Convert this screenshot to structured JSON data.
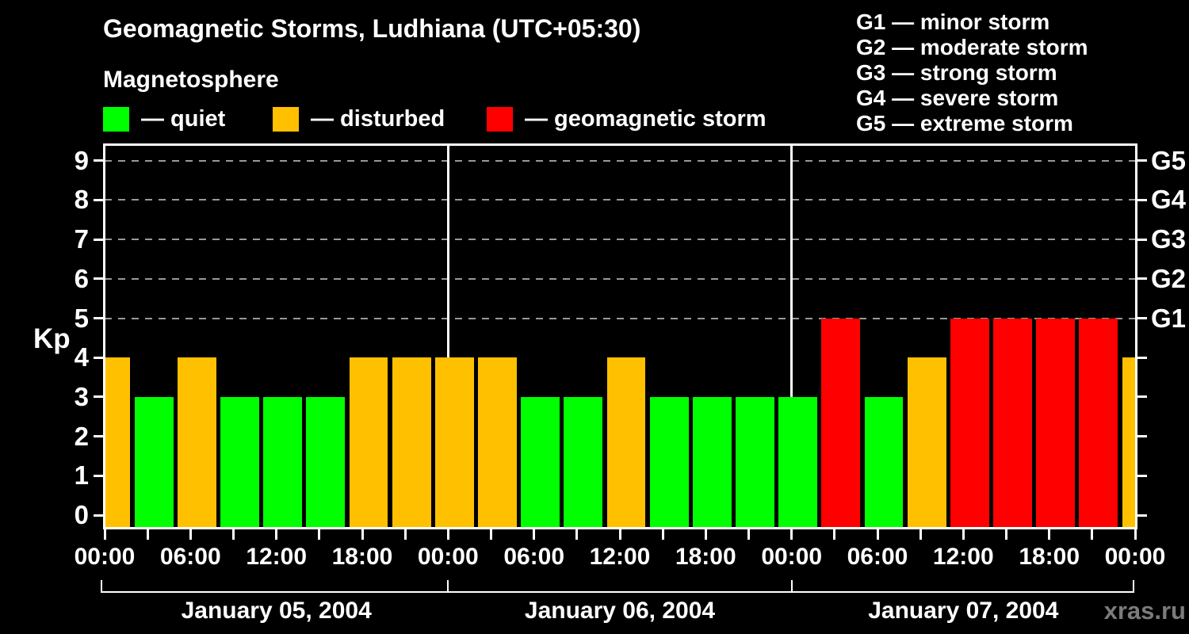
{
  "chart_data": {
    "type": "bar",
    "title": "Geomagnetic Storms, Ludhiana (UTC+05:30)",
    "subtitle": "Magnetosphere",
    "ylabel": "Kp",
    "ylim": [
      0,
      9
    ],
    "interval_hours": 3,
    "x_tick_labels": [
      "00:00",
      "06:00",
      "12:00",
      "18:00",
      "00:00",
      "06:00",
      "12:00",
      "18:00",
      "00:00",
      "06:00",
      "12:00",
      "18:00",
      "00:00"
    ],
    "days": [
      {
        "date": "January 05, 2004",
        "kp": [
          4,
          3,
          4,
          3,
          3,
          3,
          4,
          4
        ]
      },
      {
        "date": "January 06, 2004",
        "kp": [
          4,
          4,
          3,
          3,
          4,
          3,
          3,
          3
        ]
      },
      {
        "date": "January 07, 2004",
        "kp": [
          3,
          5,
          3,
          4,
          5,
          5,
          5,
          5
        ]
      }
    ],
    "next_day_partial_kp": 4,
    "g_levels": [
      {
        "label": "G1",
        "kp": 5
      },
      {
        "label": "G2",
        "kp": 6
      },
      {
        "label": "G3",
        "kp": 7
      },
      {
        "label": "G4",
        "kp": 8
      },
      {
        "label": "G5",
        "kp": 9
      }
    ],
    "gridlines_dashed_at_kp": [
      5,
      6,
      7,
      8,
      9
    ],
    "legend_position": "top-left",
    "grid": "dashed horizontal at storm levels only"
  },
  "colors": {
    "quiet": "#00ff00",
    "disturbed": "#ffc000",
    "storm": "#ff0000",
    "background": "#000000",
    "text": "#ffffff",
    "axis": "#ffffff",
    "gridline": "#999999",
    "watermark": "#7b7b7b"
  },
  "header": {
    "title": "Geomagnetic Storms, Ludhiana (UTC+05:30)",
    "legend_title": "Magnetosphere",
    "legend_items": [
      {
        "key": "quiet",
        "label": "— quiet"
      },
      {
        "key": "disturbed",
        "label": "— disturbed"
      },
      {
        "key": "storm",
        "label": "— geomagnetic storm"
      }
    ],
    "g_legend": [
      "G1 — minor storm",
      "G2 — moderate storm",
      "G3 — strong storm",
      "G4 — severe storm",
      "G5 — extreme storm"
    ]
  },
  "axes": {
    "y_label": "Kp",
    "y_ticks": [
      "0",
      "1",
      "2",
      "3",
      "4",
      "5",
      "6",
      "7",
      "8",
      "9"
    ],
    "right_labels": [
      "G1",
      "G2",
      "G3",
      "G4",
      "G5"
    ]
  },
  "footer": {
    "dates": [
      "January 05, 2004",
      "January 06, 2004",
      "January 07, 2004"
    ],
    "watermark": "xras.ru"
  }
}
